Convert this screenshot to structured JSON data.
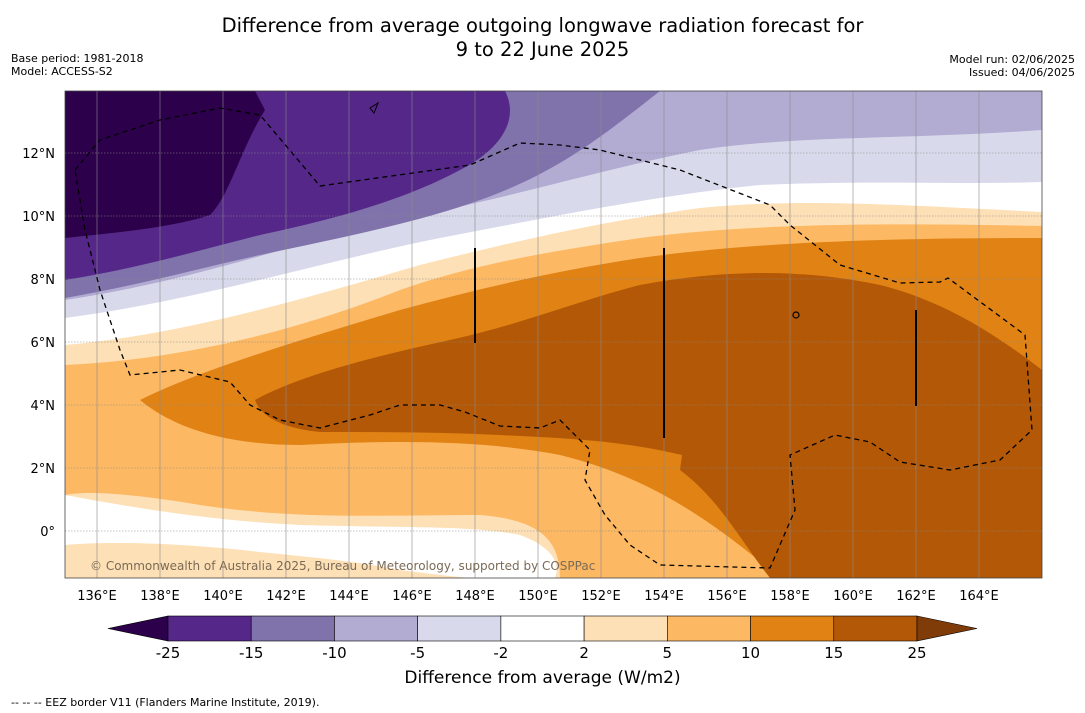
{
  "title_line1": "Difference from average outgoing longwave radiation forecast for",
  "title_line2": "9 to 22 June 2025",
  "meta_left": [
    "Base period: 1981-2018",
    "Model: ACCESS-S2"
  ],
  "meta_right": [
    "Model run: 02/06/2025",
    "Issued: 04/06/2025"
  ],
  "lat_labels": [
    "12°N",
    "10°N",
    "8°N",
    "6°N",
    "4°N",
    "2°N",
    "0°"
  ],
  "lon_labels": [
    "136°E",
    "138°E",
    "140°E",
    "142°E",
    "144°E",
    "146°E",
    "148°E",
    "150°E",
    "152°E",
    "154°E",
    "156°E",
    "158°E",
    "160°E",
    "162°E",
    "164°E"
  ],
  "credit": "© Commonwealth of Australia 2025, Bureau of Meteorology, supported by COSPPac",
  "colorbar": {
    "title": "Difference from average (W/m2)",
    "labels": [
      "-25",
      "-15",
      "-10",
      "-5",
      "-2",
      "2",
      "5",
      "10",
      "15",
      "25"
    ],
    "colors": [
      "#2d004b",
      "#542788",
      "#8073ac",
      "#b2abd2",
      "#d8daeb",
      "#ffffff",
      "#fee0b6",
      "#fdb863",
      "#e08214",
      "#b35806",
      "#7f3b08"
    ]
  },
  "footnote": "--  --  -- EEZ border V11 (Flanders Marine Institute, 2019)."
}
